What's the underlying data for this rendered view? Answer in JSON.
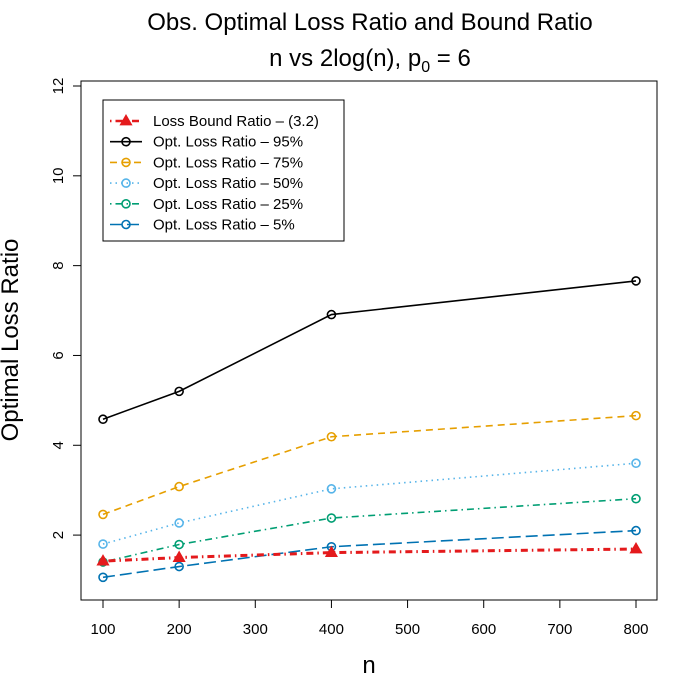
{
  "chart_data": {
    "type": "line",
    "title": "Obs. Optimal Loss Ratio and Bound Ratio",
    "subtitle_prefix": "n vs 2log(n), p",
    "subtitle_sub": "0",
    "subtitle_suffix": " = 6",
    "xlabel": "n",
    "ylabel": "Optimal Loss Ratio",
    "xlim": [
      100,
      800
    ],
    "ylim": [
      1,
      12
    ],
    "x_ticks": [
      100,
      200,
      300,
      400,
      500,
      600,
      700,
      800
    ],
    "y_ticks": [
      2,
      4,
      6,
      8,
      10,
      12
    ],
    "grid": false,
    "legend_position": "top-left",
    "x": [
      100,
      200,
      400,
      800
    ],
    "series": [
      {
        "name": "Loss Bound Ratio – (3.2)",
        "values": [
          1.42,
          1.5,
          1.61,
          1.69
        ],
        "color": "#e41a1c",
        "marker": "triangle",
        "dash": "dotdash",
        "width": 3
      },
      {
        "name": "Opt. Loss Ratio – 95%",
        "values": [
          4.58,
          5.2,
          6.91,
          7.66
        ],
        "color": "#000000",
        "marker": "circle",
        "dash": "solid",
        "width": 1.6
      },
      {
        "name": "Opt. Loss Ratio – 75%",
        "values": [
          2.46,
          3.08,
          4.19,
          4.66
        ],
        "color": "#e69f00",
        "marker": "circle",
        "dash": "dashed",
        "width": 1.6
      },
      {
        "name": "Opt. Loss Ratio – 50%",
        "values": [
          1.8,
          2.27,
          3.03,
          3.6
        ],
        "color": "#56b4e9",
        "marker": "circle",
        "dash": "dotted",
        "width": 1.6
      },
      {
        "name": "Opt. Loss Ratio – 25%",
        "values": [
          1.4,
          1.79,
          2.38,
          2.81
        ],
        "color": "#009e73",
        "marker": "circle",
        "dash": "dotdash",
        "width": 1.6
      },
      {
        "name": "Opt. Loss Ratio – 5%",
        "values": [
          1.06,
          1.3,
          1.74,
          2.1
        ],
        "color": "#0072b2",
        "marker": "circle",
        "dash": "longdash",
        "width": 1.6
      }
    ]
  }
}
